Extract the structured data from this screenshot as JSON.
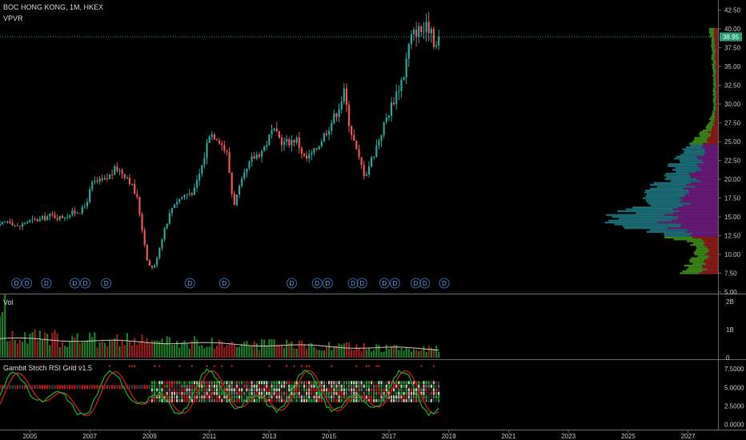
{
  "header": {
    "title": "BOC HONG KONG, 1M, HKEX",
    "indicator": "VPVR"
  },
  "price_label": "38.95",
  "colors": {
    "bull": "#26a69a",
    "bear": "#ef5350",
    "vp_green": "#3a8a1a",
    "vp_red": "#8e1a1a",
    "vp_teal": "#1c6f78",
    "vp_purple": "#6a1a7a",
    "stoch_k": "#1a9e2a",
    "stoch_d": "#c21a1a",
    "dividend": "#2f6db5",
    "vol_ma": "#cfc6a8",
    "price_line": "#3a8fa0"
  },
  "chart_data": [
    {
      "type": "candlestick",
      "name": "price",
      "x_axis": {
        "range": [
          2004.0,
          2028.0
        ],
        "ticks": [
          "2005",
          "2007",
          "2009",
          "2011",
          "2013",
          "2015",
          "2017",
          "2019",
          "2021",
          "2023",
          "2025",
          "2027"
        ]
      },
      "y_axis": {
        "range": [
          5.0,
          43.0
        ],
        "ticks": [
          "42.50",
          "40.00",
          "37.50",
          "35.00",
          "32.50",
          "30.00",
          "27.50",
          "25.00",
          "22.50",
          "20.00",
          "17.50",
          "15.00",
          "12.50",
          "10.00",
          "7.50",
          "5.00"
        ]
      },
      "last_price": 38.95,
      "dividend_marker_label": "D",
      "dividend_dates": [
        2004.55,
        2004.9,
        2005.55,
        2006.5,
        2006.85,
        2007.55,
        2010.35,
        2011.5,
        2013.75,
        2014.6,
        2014.95,
        2015.8,
        2016.1,
        2016.85,
        2017.2,
        2017.9,
        2018.2,
        2018.85
      ],
      "price_path": [
        [
          2004.0,
          13.8
        ],
        [
          2004.3,
          14.6
        ],
        [
          2004.6,
          13.6
        ],
        [
          2004.9,
          14.4
        ],
        [
          2005.3,
          14.6
        ],
        [
          2005.7,
          15.2
        ],
        [
          2006.0,
          14.9
        ],
        [
          2006.5,
          15.6
        ],
        [
          2006.8,
          16.0
        ],
        [
          2007.1,
          19.5
        ],
        [
          2007.5,
          19.8
        ],
        [
          2007.9,
          21.5
        ],
        [
          2008.3,
          20.2
        ],
        [
          2008.6,
          17.2
        ],
        [
          2008.8,
          12.2
        ],
        [
          2008.95,
          8.6
        ],
        [
          2009.15,
          8.2
        ],
        [
          2009.5,
          13.5
        ],
        [
          2009.8,
          16.8
        ],
        [
          2010.2,
          18.0
        ],
        [
          2010.5,
          18.5
        ],
        [
          2010.8,
          22.5
        ],
        [
          2011.0,
          26.2
        ],
        [
          2011.3,
          25.6
        ],
        [
          2011.6,
          23.2
        ],
        [
          2011.8,
          16.5
        ],
        [
          2012.1,
          19.8
        ],
        [
          2012.4,
          22.6
        ],
        [
          2012.8,
          24.0
        ],
        [
          2013.1,
          26.4
        ],
        [
          2013.5,
          24.8
        ],
        [
          2013.9,
          25.4
        ],
        [
          2014.2,
          22.6
        ],
        [
          2014.5,
          23.6
        ],
        [
          2014.9,
          26.4
        ],
        [
          2015.2,
          28.5
        ],
        [
          2015.5,
          31.5
        ],
        [
          2015.7,
          27.0
        ],
        [
          2015.95,
          23.2
        ],
        [
          2016.2,
          20.5
        ],
        [
          2016.5,
          23.5
        ],
        [
          2016.9,
          28.0
        ],
        [
          2017.2,
          31.0
        ],
        [
          2017.5,
          34.0
        ],
        [
          2017.7,
          38.5
        ],
        [
          2017.9,
          39.8
        ],
        [
          2018.2,
          39.8
        ],
        [
          2018.4,
          40.5
        ],
        [
          2018.55,
          37.5
        ],
        [
          2018.7,
          38.95
        ]
      ],
      "volume_profile": [
        [
          7.5,
          0.35
        ],
        [
          8.5,
          0.25
        ],
        [
          9.5,
          0.2
        ],
        [
          10.5,
          0.18
        ],
        [
          11.5,
          0.22
        ],
        [
          12.5,
          0.45
        ],
        [
          13.5,
          0.7
        ],
        [
          14.5,
          1.0
        ],
        [
          15.5,
          0.8
        ],
        [
          16.5,
          0.62
        ],
        [
          17.5,
          0.55
        ],
        [
          18.5,
          0.55
        ],
        [
          19.5,
          0.48
        ],
        [
          20.5,
          0.4
        ],
        [
          21.5,
          0.38
        ],
        [
          22.5,
          0.34
        ],
        [
          23.5,
          0.3
        ],
        [
          24.5,
          0.22
        ],
        [
          25.5,
          0.18
        ],
        [
          26.5,
          0.12
        ],
        [
          27.5,
          0.08
        ],
        [
          28.5,
          0.05
        ],
        [
          30.0,
          0.04
        ],
        [
          33.0,
          0.04
        ],
        [
          36.0,
          0.05
        ],
        [
          38.0,
          0.06
        ],
        [
          40.0,
          0.07
        ]
      ]
    },
    {
      "type": "bar",
      "name": "Vol",
      "label": "Vol",
      "y_axis": {
        "range": [
          0,
          2.2
        ],
        "ticks": [
          "2B",
          "1B",
          "0"
        ],
        "tick_values": [
          2,
          1,
          0
        ]
      },
      "note_values_in": "billions",
      "moving_average_start": 0.68,
      "moving_average_end": 0.3
    },
    {
      "type": "line",
      "name": "Gambit Stoch RSI Grid v1.5",
      "label": "Gambit Stoch RSI Grid v1.5",
      "y_axis": {
        "range": [
          -0.5,
          8.5
        ],
        "ticks": [
          "7.5000",
          "5.0000",
          "2.5000",
          "0.0000"
        ],
        "tick_values": [
          7.5,
          5.0,
          2.5,
          0.0
        ]
      },
      "grid_level": 5.0
    }
  ]
}
